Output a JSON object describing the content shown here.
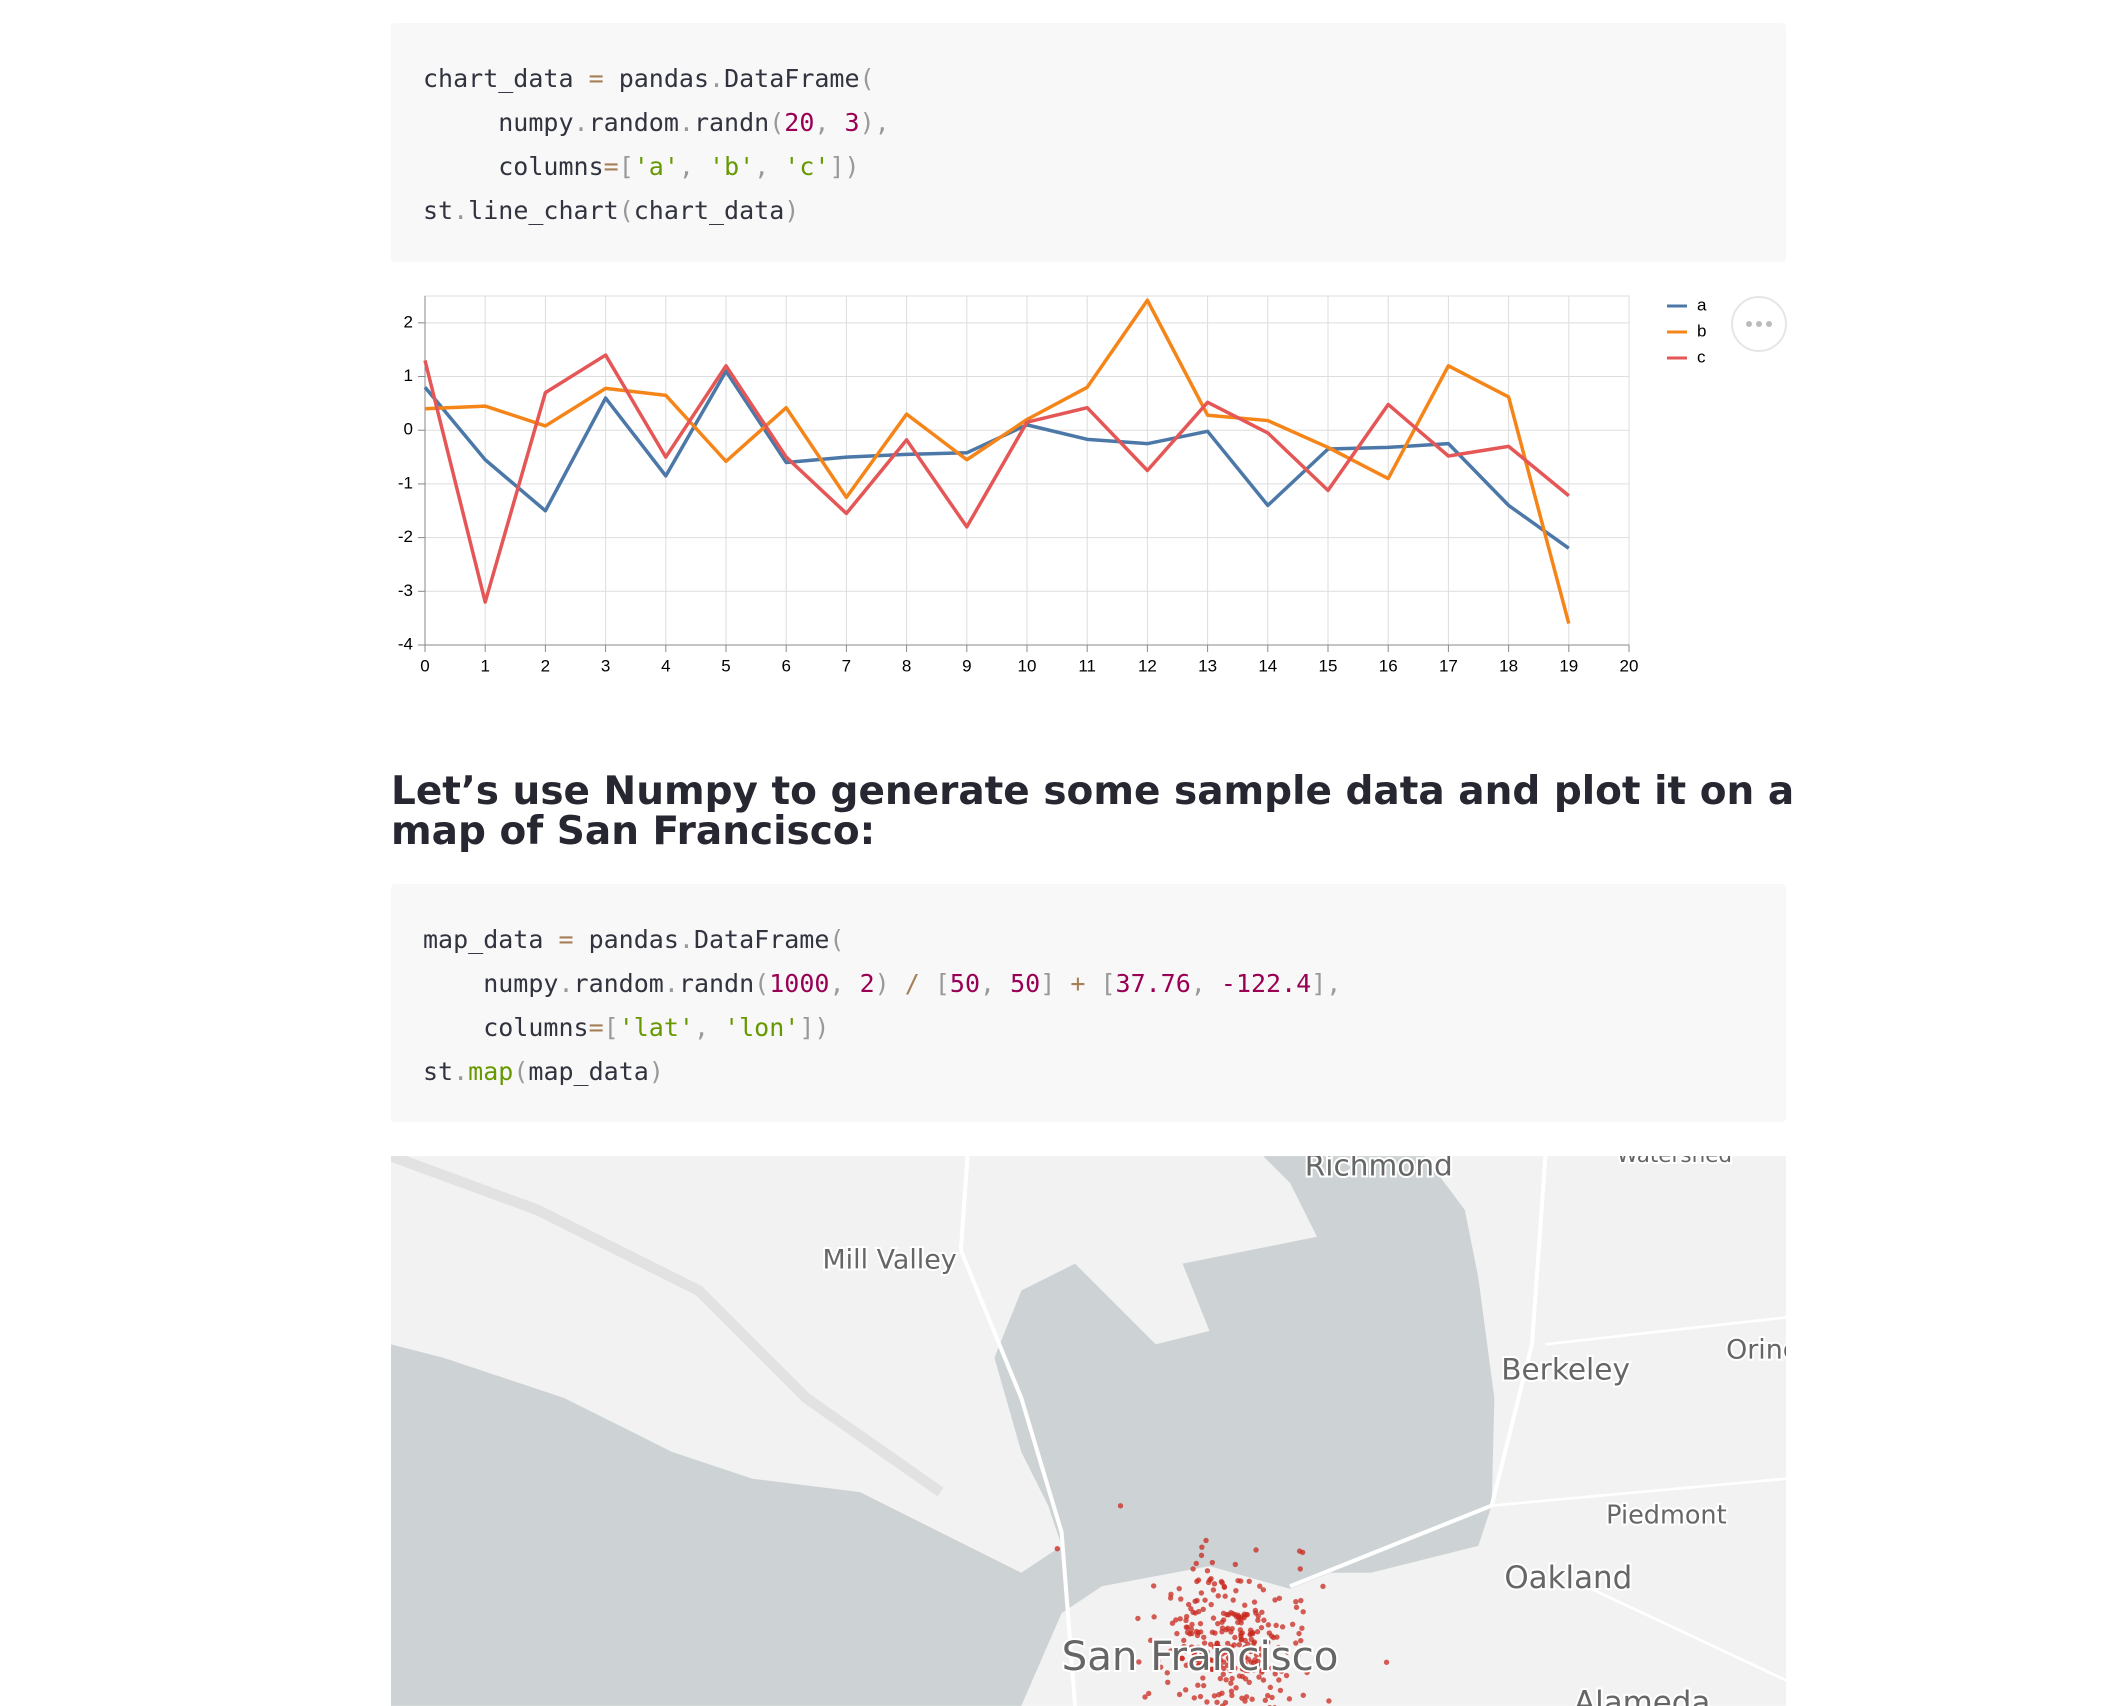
{
  "code_blocks": [
    {
      "lines": [
        [
          {
            "text": "chart_data ",
            "color": "#31333F"
          },
          {
            "text": "=",
            "color": "#a67f59"
          },
          {
            "text": " pandas",
            "color": "#31333F"
          },
          {
            "text": ".",
            "color": "#999999"
          },
          {
            "text": "DataFrame",
            "color": "#31333F"
          },
          {
            "text": "(",
            "color": "#999999"
          }
        ],
        [
          {
            "text": "     numpy",
            "color": "#31333F"
          },
          {
            "text": ".",
            "color": "#999999"
          },
          {
            "text": "random",
            "color": "#31333F"
          },
          {
            "text": ".",
            "color": "#999999"
          },
          {
            "text": "randn",
            "color": "#31333F"
          },
          {
            "text": "(",
            "color": "#999999"
          },
          {
            "text": "20",
            "color": "#990055"
          },
          {
            "text": ", ",
            "color": "#999999"
          },
          {
            "text": "3",
            "color": "#990055"
          },
          {
            "text": "),",
            "color": "#999999"
          }
        ],
        [
          {
            "text": "     columns",
            "color": "#31333F"
          },
          {
            "text": "=",
            "color": "#a67f59"
          },
          {
            "text": "[",
            "color": "#999999"
          },
          {
            "text": "'a'",
            "color": "#669900"
          },
          {
            "text": ", ",
            "color": "#999999"
          },
          {
            "text": "'b'",
            "color": "#669900"
          },
          {
            "text": ", ",
            "color": "#999999"
          },
          {
            "text": "'c'",
            "color": "#669900"
          },
          {
            "text": "])",
            "color": "#999999"
          }
        ],
        [
          {
            "text": "st",
            "color": "#31333F"
          },
          {
            "text": ".",
            "color": "#999999"
          },
          {
            "text": "line_chart",
            "color": "#31333F"
          },
          {
            "text": "(",
            "color": "#999999"
          },
          {
            "text": "chart_data",
            "color": "#31333F"
          },
          {
            "text": ")",
            "color": "#999999"
          }
        ]
      ]
    },
    {
      "lines": [
        [
          {
            "text": "map_data ",
            "color": "#31333F"
          },
          {
            "text": "=",
            "color": "#a67f59"
          },
          {
            "text": " pandas",
            "color": "#31333F"
          },
          {
            "text": ".",
            "color": "#999999"
          },
          {
            "text": "DataFrame",
            "color": "#31333F"
          },
          {
            "text": "(",
            "color": "#999999"
          }
        ],
        [
          {
            "text": "    numpy",
            "color": "#31333F"
          },
          {
            "text": ".",
            "color": "#999999"
          },
          {
            "text": "random",
            "color": "#31333F"
          },
          {
            "text": ".",
            "color": "#999999"
          },
          {
            "text": "randn",
            "color": "#31333F"
          },
          {
            "text": "(",
            "color": "#999999"
          },
          {
            "text": "1000",
            "color": "#990055"
          },
          {
            "text": ", ",
            "color": "#999999"
          },
          {
            "text": "2",
            "color": "#990055"
          },
          {
            "text": ") ",
            "color": "#999999"
          },
          {
            "text": "/",
            "color": "#a67f59"
          },
          {
            "text": " [",
            "color": "#999999"
          },
          {
            "text": "50",
            "color": "#990055"
          },
          {
            "text": ", ",
            "color": "#999999"
          },
          {
            "text": "50",
            "color": "#990055"
          },
          {
            "text": "] ",
            "color": "#999999"
          },
          {
            "text": "+",
            "color": "#a67f59"
          },
          {
            "text": " [",
            "color": "#999999"
          },
          {
            "text": "37.76",
            "color": "#990055"
          },
          {
            "text": ", ",
            "color": "#999999"
          },
          {
            "text": "-122.4",
            "color": "#990055"
          },
          {
            "text": "],",
            "color": "#999999"
          }
        ],
        [
          {
            "text": "    columns",
            "color": "#31333F"
          },
          {
            "text": "=",
            "color": "#a67f59"
          },
          {
            "text": "[",
            "color": "#999999"
          },
          {
            "text": "'lat'",
            "color": "#669900"
          },
          {
            "text": ", ",
            "color": "#999999"
          },
          {
            "text": "'lon'",
            "color": "#669900"
          },
          {
            "text": "])",
            "color": "#999999"
          }
        ],
        [
          {
            "text": "st",
            "color": "#31333F"
          },
          {
            "text": ".",
            "color": "#999999"
          },
          {
            "text": "map",
            "color": "#669900"
          },
          {
            "text": "(",
            "color": "#999999"
          },
          {
            "text": "map_data",
            "color": "#31333F"
          },
          {
            "text": ")",
            "color": "#999999"
          }
        ]
      ]
    }
  ],
  "chart_data": {
    "type": "line",
    "x": [
      0,
      1,
      2,
      3,
      4,
      5,
      6,
      7,
      8,
      9,
      10,
      11,
      12,
      13,
      14,
      15,
      16,
      17,
      18,
      19
    ],
    "series": [
      {
        "name": "a",
        "color": "#4c78a8",
        "values": [
          0.8,
          -0.55,
          -1.5,
          0.6,
          -0.85,
          1.1,
          -0.6,
          -0.5,
          -0.45,
          -0.42,
          0.1,
          -0.17,
          -0.25,
          -0.02,
          -1.4,
          -0.35,
          -0.32,
          -0.25,
          -1.4,
          -2.2
        ]
      },
      {
        "name": "b",
        "color": "#f58518",
        "values": [
          0.4,
          0.45,
          0.08,
          0.78,
          0.65,
          -0.58,
          0.42,
          -1.25,
          0.3,
          -0.55,
          0.2,
          0.8,
          2.42,
          0.28,
          0.18,
          -0.32,
          -0.9,
          1.2,
          0.62,
          -3.6
        ]
      },
      {
        "name": "c",
        "color": "#e45756",
        "values": [
          1.3,
          -3.2,
          0.7,
          1.4,
          -0.5,
          1.2,
          -0.5,
          -1.55,
          -0.18,
          -1.8,
          0.15,
          0.42,
          -0.75,
          0.52,
          -0.05,
          -1.12,
          0.48,
          -0.48,
          -0.3,
          -1.22
        ]
      }
    ],
    "xlim": [
      0,
      20
    ],
    "xticks": [
      0,
      1,
      2,
      3,
      4,
      5,
      6,
      7,
      8,
      9,
      10,
      11,
      12,
      13,
      14,
      15,
      16,
      17,
      18,
      19,
      20
    ],
    "ylim": [
      -4,
      2.5
    ],
    "yticks": [
      2,
      1,
      0,
      -1,
      -2,
      -3,
      -4
    ],
    "grid": true,
    "legend": "right"
  },
  "heading": "Let’s use Numpy to generate some sample data and plot it on a map of San Francisco:",
  "map": {
    "labels": [
      "Richmond",
      "Watershed",
      "Mill Valley",
      "Berkeley",
      "Orinda",
      "Piedmont",
      "Oakland",
      "San Francisco",
      "Alameda"
    ]
  }
}
